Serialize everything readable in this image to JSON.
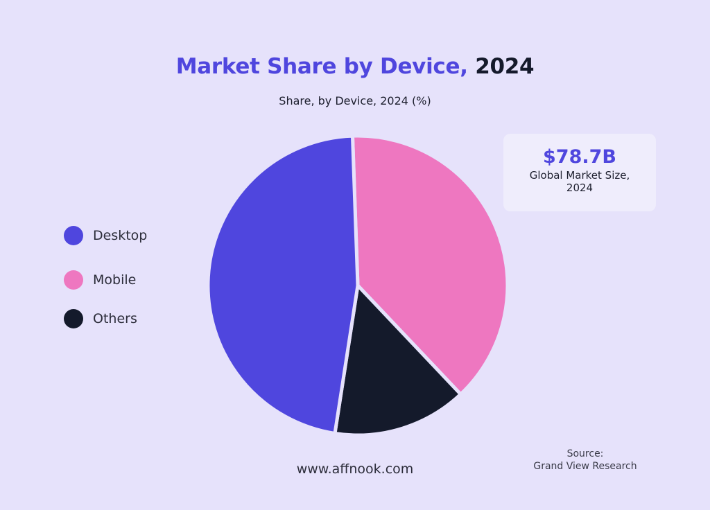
{
  "header": {
    "title_main": "Market Share by Device,",
    "title_year": "2024",
    "subtitle": "Share, by Device, 2024 (%)"
  },
  "card": {
    "value": "$78.7B",
    "label": "Global Market Size, 2024"
  },
  "footer": {
    "url": "www.affnook.com",
    "source_label": "Source:",
    "source_name": "Grand View Research"
  },
  "chart_data": {
    "type": "pie",
    "title": "Market Share by Device, 2024",
    "subtitle": "Share, by Device, 2024 (%)",
    "legend_position": "left",
    "slices": [
      {
        "label": "Mobile",
        "value": 38.5,
        "color": "#ee77c0"
      },
      {
        "label": "Others",
        "value": 14.5,
        "color": "#141a2b"
      },
      {
        "label": "Desktop",
        "value": 47.0,
        "color": "#4f46de"
      }
    ],
    "legend": [
      {
        "label": "Desktop",
        "color": "#4f46de"
      },
      {
        "label": "Mobile",
        "color": "#ee77c0"
      },
      {
        "label": "Others",
        "color": "#141a2b"
      }
    ]
  }
}
